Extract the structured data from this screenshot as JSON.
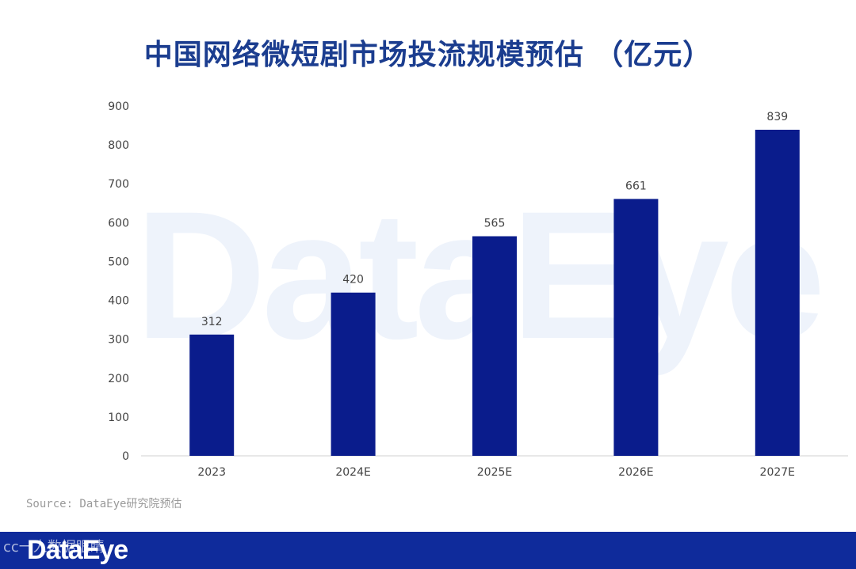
{
  "title": "中国网络微短剧市场投流规模预估 （亿元）",
  "source": "Source: DataEye研究院预估",
  "watermark_text": "DataEye",
  "footer": {
    "brand": "DataEye",
    "watermark": "cc一人数据眼睛",
    "color": "#0f2b9b"
  },
  "colors": {
    "bar": "#0a1c8c",
    "title": "#1b3d8f"
  },
  "chart_data": {
    "type": "bar",
    "categories": [
      "2023",
      "2024E",
      "2025E",
      "2026E",
      "2027E"
    ],
    "values": [
      312,
      420,
      565,
      661,
      839
    ],
    "ylim": [
      0,
      900
    ],
    "yticks": [
      0,
      100,
      200,
      300,
      400,
      500,
      600,
      700,
      800,
      900
    ],
    "title": "中国网络微短剧市场投流规模预估 （亿元）",
    "xlabel": "",
    "ylabel": "",
    "grid": false,
    "legend": "none"
  }
}
